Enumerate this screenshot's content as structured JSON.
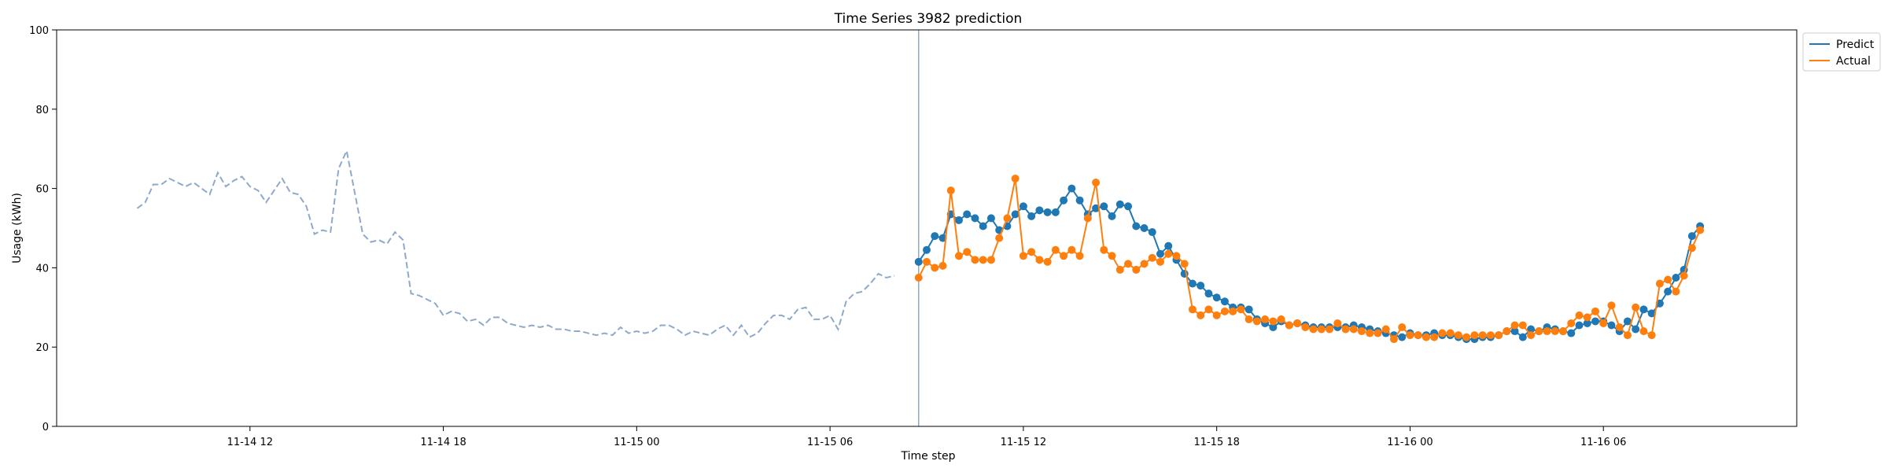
{
  "chart_data": {
    "type": "line",
    "title": "Time Series 3982 prediction",
    "xlabel": "Time step",
    "ylabel": "Usage (kWh)",
    "ylim": [
      0,
      100
    ],
    "yticks": [
      0,
      20,
      40,
      60,
      80,
      100
    ],
    "x_start": "2023-11-14 06:00",
    "x_end": "2023-11-16 12:00",
    "xticks": [
      {
        "at": "2023-11-14 12:00",
        "label": "11-14 12"
      },
      {
        "at": "2023-11-14 18:00",
        "label": "11-14 18"
      },
      {
        "at": "2023-11-15 00:00",
        "label": "11-15 00"
      },
      {
        "at": "2023-11-15 06:00",
        "label": "11-15 06"
      },
      {
        "at": "2023-11-15 12:00",
        "label": "11-15 12"
      },
      {
        "at": "2023-11-15 18:00",
        "label": "11-15 18"
      },
      {
        "at": "2023-11-16 00:00",
        "label": "11-16 00"
      },
      {
        "at": "2023-11-16 06:00",
        "label": "11-16 06"
      }
    ],
    "forecast_start": "2023-11-15 08:45",
    "legend_position": "top-right, outside plot",
    "history": {
      "start": "2023-11-14 08:30",
      "interval_minutes": 15,
      "color": "#8fa9c9",
      "style": "dashed",
      "values": [
        55,
        56.5,
        61,
        61,
        62.5,
        61.5,
        60.5,
        61.5,
        60,
        58.5,
        64,
        60.5,
        62,
        63,
        60.5,
        59.5,
        56.5,
        59.5,
        62.5,
        59,
        58.5,
        55.5,
        48.5,
        49.5,
        49,
        65,
        69.5,
        59,
        48.5,
        46.5,
        47,
        46,
        49,
        47,
        33.5,
        33,
        32,
        31,
        28,
        29,
        28.5,
        26.5,
        27,
        25.5,
        27.5,
        27.5,
        26,
        25.5,
        25,
        25.5,
        25,
        25.5,
        24.5,
        24.5,
        24,
        24,
        23.5,
        23,
        23.5,
        23,
        25,
        23.5,
        24,
        23.5,
        24,
        25.5,
        25.5,
        24.5,
        23,
        24,
        23.5,
        23,
        24.5,
        25.5,
        23,
        25.5,
        22.5,
        23.5,
        26,
        28,
        28,
        27,
        29.5,
        30,
        27,
        27,
        28,
        24.5,
        31.5,
        33.5,
        34,
        36,
        38.5,
        37.5,
        38
      ]
    },
    "series": [
      {
        "name": "Predict",
        "color": "#1f77b4",
        "start": "2023-11-15 08:45",
        "interval_minutes": 15,
        "values": [
          41.5,
          44.5,
          48,
          47.5,
          53.5,
          52,
          53.5,
          52.5,
          50.5,
          52.5,
          49.5,
          50.5,
          53.5,
          55.5,
          53,
          54.5,
          54,
          54,
          57,
          60,
          57,
          53.5,
          55,
          55.5,
          53,
          56,
          55.5,
          50.5,
          50,
          49,
          43.5,
          45.5,
          42,
          38.5,
          36,
          35.5,
          33.5,
          32.5,
          31.5,
          30,
          30,
          29.5,
          27,
          26,
          25,
          26.5,
          25.5,
          26,
          25.5,
          25,
          25,
          25,
          25,
          25,
          25.5,
          25,
          24.5,
          24,
          23.5,
          23,
          22.5,
          23.5,
          23,
          23,
          23.5,
          23,
          23,
          22.5,
          22,
          22,
          22.5,
          22.5,
          23,
          24,
          24,
          22.5,
          24.5,
          24,
          25,
          24.5,
          24,
          23.5,
          25.5,
          26,
          26.5,
          26.5,
          25.5,
          24,
          26.5,
          24.5,
          29.5,
          28.5,
          31,
          34,
          37.5,
          39.5,
          48,
          50.5
        ]
      },
      {
        "name": "Actual",
        "color": "#ff7f0e",
        "start": "2023-11-15 08:45",
        "interval_minutes": 15,
        "values": [
          37.5,
          41.5,
          40,
          40.5,
          59.5,
          43,
          44,
          42,
          42,
          42,
          47.5,
          52.5,
          62.5,
          43,
          44,
          42,
          41.5,
          44.5,
          43,
          44.5,
          43,
          52.5,
          61.5,
          44.5,
          43,
          39.5,
          41,
          39.5,
          41,
          42.5,
          41.5,
          43.5,
          43,
          41,
          29.5,
          28,
          29.5,
          28,
          29,
          29,
          29.5,
          27,
          26.5,
          27,
          26.5,
          27,
          25.5,
          26,
          25,
          24.5,
          24.5,
          24.5,
          26,
          24.5,
          24.5,
          24,
          23.5,
          23.5,
          24.5,
          22,
          25,
          23,
          23,
          22.5,
          22.5,
          23.5,
          23.5,
          23,
          22.5,
          23,
          23,
          23,
          23,
          24,
          25.5,
          25.5,
          23,
          24,
          24,
          24,
          24,
          26,
          28,
          27.5,
          29,
          26,
          30.5,
          25,
          23,
          30,
          24,
          23,
          36,
          37,
          34,
          38,
          45,
          49.5
        ]
      }
    ]
  }
}
